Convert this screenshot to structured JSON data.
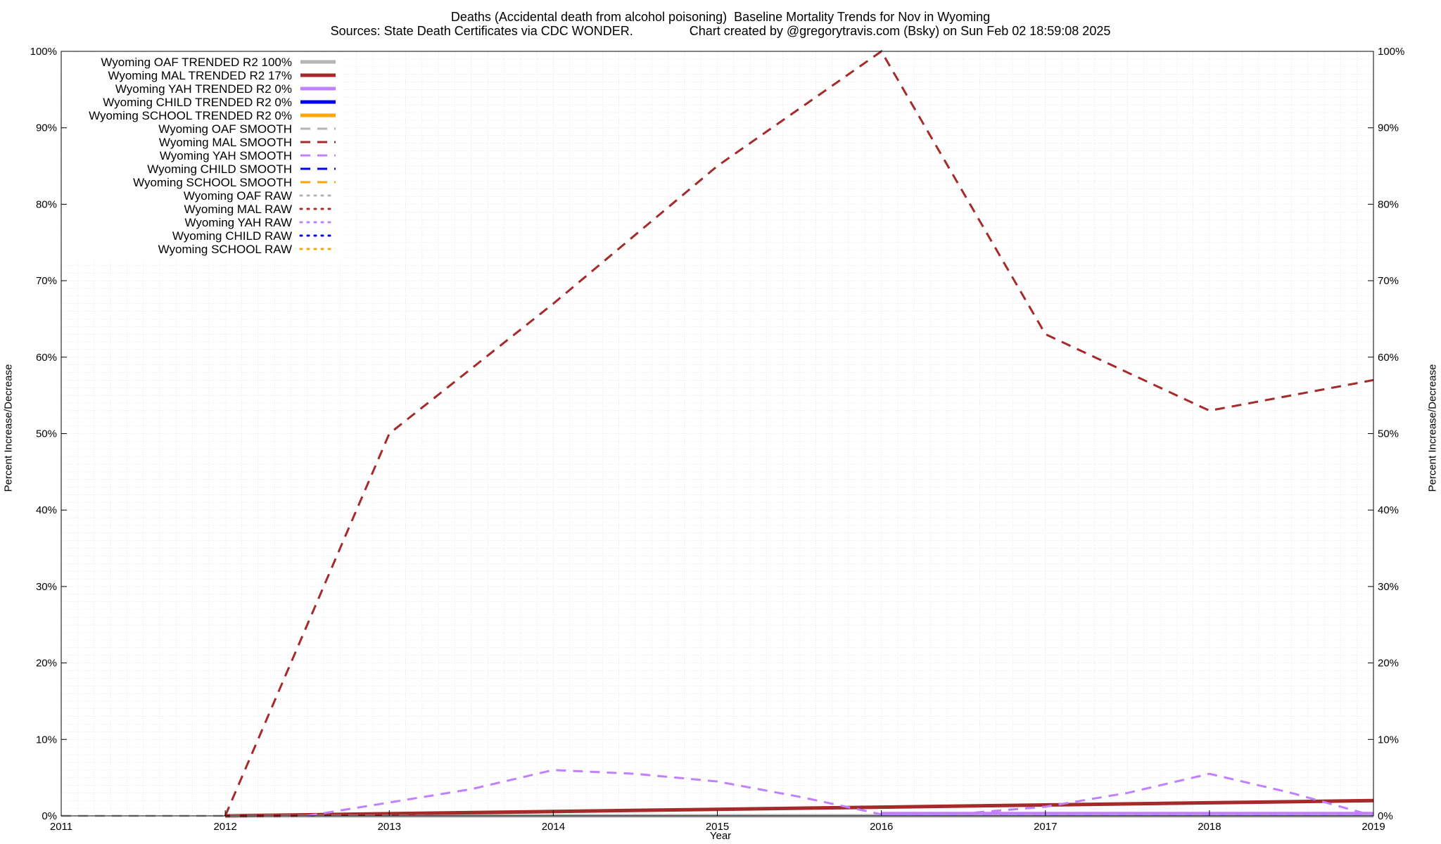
{
  "title_line1": "Deaths (Accidental death from alcohol poisoning)  Baseline Mortality Trends for Nov in Wyoming",
  "title_line2": "Sources: State Death Certificates via CDC WONDER.                Chart created by @gregorytravis.com (Bsky) on Sun Feb 02 18:59:08 2025",
  "chart_data": {
    "type": "line",
    "xlabel": "Year",
    "ylabel": "Percent Increase/Decrease",
    "xlim": [
      2011,
      2019
    ],
    "x_ticks": [
      "2011",
      "2012",
      "2013",
      "2014",
      "2015",
      "2016",
      "2017",
      "2018",
      "2019"
    ],
    "ylim": [
      0,
      100
    ],
    "y_tick_suffix": "%",
    "grid": true,
    "legend_position": "top-left",
    "series": [
      {
        "name": "Wyoming OAF TRENDED R2 100%",
        "color": "#b3b3b3",
        "style": "solid-thick",
        "x": [
          2012,
          2019
        ],
        "y": [
          0,
          0
        ]
      },
      {
        "name": "Wyoming MAL TRENDED R2  17%",
        "color": "#a52a2a",
        "style": "solid-thick",
        "x": [
          2012,
          2019
        ],
        "y": [
          0,
          2
        ]
      },
      {
        "name": "Wyoming YAH TRENDED R2   0%",
        "color": "#c080ff",
        "style": "solid-thick",
        "x": [
          2016,
          2019
        ],
        "y": [
          0.3,
          0.3
        ]
      },
      {
        "name": "Wyoming CHILD TRENDED R2   0%",
        "color": "#0000ff",
        "style": "solid-thick",
        "x": [],
        "y": []
      },
      {
        "name": "Wyoming SCHOOL TRENDED R2   0%",
        "color": "#ffa500",
        "style": "solid-thick",
        "x": [],
        "y": []
      },
      {
        "name": "Wyoming OAF SMOOTH",
        "color": "#b3b3b3",
        "style": "dashed",
        "x": [
          2011,
          2019
        ],
        "y": [
          0,
          0
        ]
      },
      {
        "name": "Wyoming MAL SMOOTH",
        "color": "#a52a2a",
        "style": "dashed",
        "x": [
          2012,
          2013,
          2014,
          2015,
          2016,
          2017,
          2018,
          2019
        ],
        "y": [
          0,
          50,
          67,
          85,
          100,
          63,
          53,
          57
        ]
      },
      {
        "name": "Wyoming YAH SMOOTH",
        "color": "#c080ff",
        "style": "dashed",
        "x": [
          2012.5,
          2013.5,
          2014,
          2014.5,
          2015,
          2015.5,
          2016,
          2016.5,
          2017,
          2017.5,
          2018,
          2018.5,
          2019
        ],
        "y": [
          0,
          3.5,
          6,
          5.5,
          4.5,
          2.5,
          0.2,
          0.3,
          1.2,
          3,
          5.5,
          3,
          0
        ]
      },
      {
        "name": "Wyoming CHILD SMOOTH",
        "color": "#0000ff",
        "style": "dashed",
        "x": [],
        "y": []
      },
      {
        "name": "Wyoming SCHOOL SMOOTH",
        "color": "#ffa500",
        "style": "dashed",
        "x": [],
        "y": []
      },
      {
        "name": "Wyoming OAF RAW",
        "color": "#b3b3b3",
        "style": "dotted",
        "x": [],
        "y": []
      },
      {
        "name": "Wyoming MAL RAW",
        "color": "#a52a2a",
        "style": "dotted",
        "x": [],
        "y": []
      },
      {
        "name": "Wyoming YAH RAW",
        "color": "#c080ff",
        "style": "dotted",
        "x": [],
        "y": []
      },
      {
        "name": "Wyoming CHILD RAW",
        "color": "#0000ff",
        "style": "dotted",
        "x": [],
        "y": []
      },
      {
        "name": "Wyoming SCHOOL RAW",
        "color": "#ffa500",
        "style": "dotted",
        "x": [],
        "y": []
      }
    ]
  }
}
